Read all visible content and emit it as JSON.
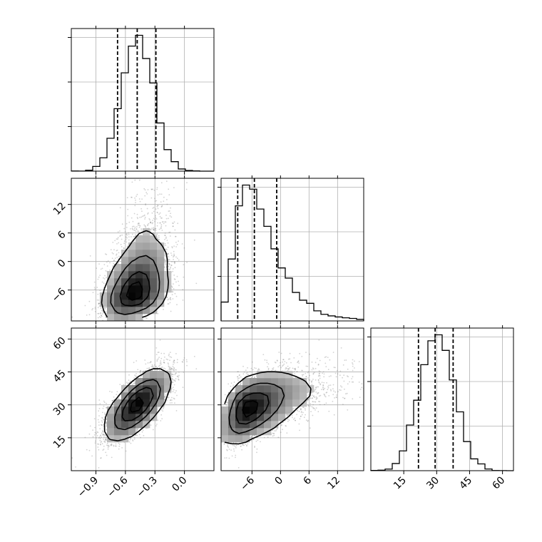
{
  "chart_data": {
    "type": "corner",
    "title": "",
    "grid": true,
    "parameters": [
      {
        "name": "",
        "range": [
          -1.15,
          0.3
        ],
        "ticks": [
          -0.9,
          -0.6,
          -0.3,
          0.0
        ],
        "tick_labels": [
          "−0.9",
          "−0.6",
          "−0.3",
          "0.0"
        ],
        "quantiles": [
          -0.68,
          -0.48,
          -0.29
        ],
        "marginal": {
          "mean": -0.48,
          "sd": 0.16
        }
      },
      {
        "name": "",
        "range": [
          -12.5,
          17.5
        ],
        "ticks": [
          -6,
          0,
          6,
          12
        ],
        "tick_labels": [
          "−6",
          "0",
          "6",
          "12"
        ],
        "quantiles": [
          -9.0,
          -5.5,
          -0.8
        ],
        "marginal": {
          "mode": -6.5,
          "skew": "right"
        }
      },
      {
        "name": "",
        "range": [
          0,
          65
        ],
        "ticks": [
          15,
          30,
          45,
          60
        ],
        "tick_labels": [
          "15",
          "30",
          "45",
          "60"
        ],
        "quantiles": [
          21.7,
          29.3,
          37.5
        ],
        "marginal": {
          "mean": 30,
          "sd": 8
        }
      }
    ],
    "correlations": {
      "p0_p1": 0.35,
      "p0_p2": 0.6,
      "p1_p2": 0.45
    },
    "histogram_y_ticks": 3
  }
}
